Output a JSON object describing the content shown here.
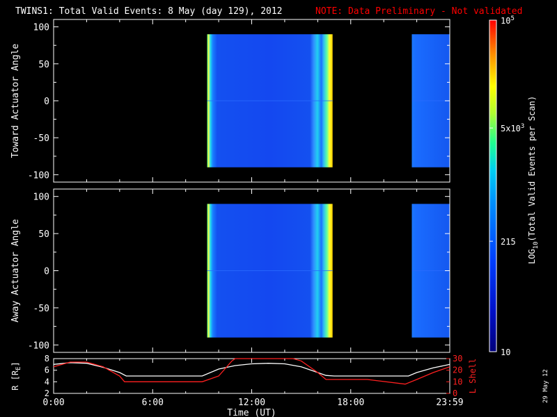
{
  "title": "TWINS1: Total Valid Events:  8 May (day 129), 2012",
  "note": "NOTE: Data Preliminary - Not validated",
  "date_stamp": "29 May 12",
  "colors": {
    "background": "#000000",
    "axes": "#ffffff",
    "note": "#ff0000",
    "l_shell": "#ff2020"
  },
  "chart_data": [
    {
      "type": "heatmap",
      "ylabel": "Toward Actuator Angle",
      "ylim": [
        -110,
        110
      ],
      "yticks": [
        -100,
        -50,
        0,
        50,
        100
      ],
      "xlim": [
        0,
        24
      ],
      "data_blocks": [
        {
          "t_start": 9.3,
          "t_end": 16.9,
          "angle_min": -90,
          "angle_max": 90,
          "dominant_level": 80,
          "edge_levels": [
            1500,
            4000
          ]
        },
        {
          "t_start": 21.7,
          "t_end": 24.0,
          "angle_min": -90,
          "angle_max": 90,
          "dominant_level": 100
        }
      ]
    },
    {
      "type": "heatmap",
      "ylabel": "Away Actuator Angle",
      "ylim": [
        -110,
        110
      ],
      "yticks": [
        -100,
        -50,
        0,
        50,
        100
      ],
      "xlim": [
        0,
        24
      ],
      "data_blocks": [
        {
          "t_start": 9.3,
          "t_end": 16.9,
          "angle_min": -90,
          "angle_max": 90,
          "dominant_level": 80,
          "edge_levels": [
            1500,
            4000
          ]
        },
        {
          "t_start": 21.7,
          "t_end": 24.0,
          "angle_min": -90,
          "angle_max": 90,
          "dominant_level": 100
        }
      ]
    },
    {
      "type": "line",
      "ylabel": "R [R",
      "ylabel_sub": "E",
      "ylabel_close": "]",
      "y2label": "L Shell",
      "xlabel": "Time (UT)",
      "xlim": [
        0,
        24
      ],
      "xticks": [
        0,
        6,
        12,
        18,
        24
      ],
      "xtick_labels": [
        "0:00",
        "6:00",
        "12:00",
        "18:00",
        "23:59"
      ],
      "ylim": [
        2,
        8
      ],
      "yticks": [
        2,
        4,
        6,
        8
      ],
      "y2lim": [
        0,
        30
      ],
      "y2ticks": [
        0,
        10,
        20,
        30
      ],
      "series": [
        {
          "axis": "left",
          "color": "#ffffff",
          "x": [
            0,
            1,
            2,
            3,
            4,
            4.4,
            5,
            7,
            9,
            10,
            11,
            12,
            13,
            14,
            15,
            16,
            16.5,
            17,
            19,
            21.5,
            22,
            23,
            24
          ],
          "y": [
            7.0,
            7.3,
            7.2,
            6.5,
            5.6,
            5.0,
            5.0,
            5.0,
            5.0,
            6.2,
            6.8,
            7.1,
            7.2,
            7.1,
            6.6,
            5.6,
            5.1,
            5.0,
            5.0,
            5.0,
            5.6,
            6.4,
            7.0
          ]
        },
        {
          "axis": "right",
          "color": "#ff2020",
          "x": [
            0,
            1,
            2,
            3,
            4,
            4.3,
            5,
            7,
            9,
            10,
            10.8,
            11,
            14.5,
            15,
            16,
            16.5,
            17,
            19,
            21.3,
            22,
            23,
            24
          ],
          "y": [
            23,
            27,
            27,
            23,
            15,
            10,
            10,
            10,
            10,
            15,
            28,
            32,
            32,
            28,
            18,
            12,
            12,
            12,
            8,
            12,
            18,
            23
          ]
        }
      ]
    }
  ],
  "colorbar": {
    "label_prefix": "LOG",
    "label_sub": "10",
    "label_suffix": "(Total Valid  Events per Scan)",
    "scale": "log",
    "range": [
      10,
      100000
    ],
    "ticks": [
      {
        "value": 100000,
        "label": "10",
        "sup": "5"
      },
      {
        "value": 5000,
        "label": "5x10",
        "sup": "3"
      },
      {
        "value": 215,
        "label": "215",
        "sup": ""
      },
      {
        "value": 10,
        "label": "10",
        "sup": ""
      }
    ]
  }
}
